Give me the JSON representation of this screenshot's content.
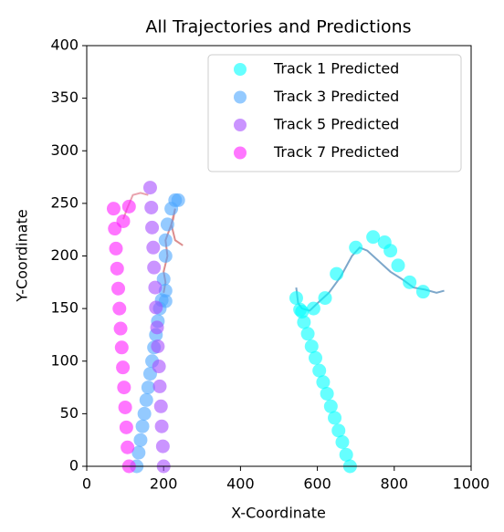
{
  "chart_data": {
    "type": "scatter",
    "title": "All Trajectories and Predictions",
    "x_label": "X-Coordinate",
    "y_label": "Y-Coordinate",
    "xlim": [
      0,
      1000
    ],
    "xticks": [
      0,
      200,
      400,
      600,
      800,
      1000
    ],
    "ylim": [
      0,
      400
    ],
    "yticks": [
      0,
      50,
      100,
      150,
      200,
      250,
      300,
      350,
      400
    ],
    "legend": "upper right",
    "series": [
      {
        "name": "Track 1 Predicted",
        "color": "#00ffff",
        "x": [
          545,
          555,
          565,
          575,
          585,
          595,
          605,
          615,
          625,
          635,
          645,
          655,
          665,
          675,
          685,
          560,
          590,
          620,
          650,
          700,
          745,
          775,
          790,
          810,
          840,
          875
        ],
        "values": [
          160,
          149,
          137,
          126,
          114,
          103,
          91,
          80,
          69,
          57,
          46,
          34,
          23,
          11,
          0,
          147,
          150,
          160,
          183,
          208,
          218,
          213,
          205,
          191,
          175,
          166
        ]
      },
      {
        "name": "Track 3 Predicted",
        "color": "#4da6ff",
        "x": [
          130,
          135,
          140,
          145,
          150,
          155,
          160,
          165,
          170,
          175,
          180,
          185,
          190,
          195,
          205,
          205,
          200,
          205,
          205,
          210,
          220,
          230,
          238
        ],
        "values": [
          0,
          13,
          25,
          38,
          50,
          63,
          75,
          88,
          100,
          113,
          125,
          138,
          150,
          158,
          157,
          167,
          178,
          200,
          215,
          230,
          245,
          253,
          253
        ]
      },
      {
        "name": "Track 5 Predicted",
        "color": "#a64dff",
        "x": [
          165,
          168,
          170,
          173,
          175,
          178,
          180,
          183,
          185,
          188,
          190,
          193,
          195,
          198,
          200
        ],
        "values": [
          265,
          246,
          227,
          208,
          189,
          170,
          151,
          132,
          114,
          95,
          76,
          57,
          38,
          19,
          0
        ]
      },
      {
        "name": "Track 7 Predicted",
        "color": "#ff1aff",
        "x": [
          70,
          73,
          76,
          79,
          82,
          85,
          88,
          91,
          94,
          97,
          100,
          103,
          106,
          110,
          95,
          110
        ],
        "values": [
          245,
          226,
          207,
          188,
          169,
          150,
          131,
          113,
          94,
          75,
          56,
          37,
          18,
          0,
          233,
          247
        ]
      }
    ],
    "trajectories": [
      {
        "color": "#4682b4",
        "x": [
          545,
          550,
          560,
          580,
          600,
          630,
          660,
          690,
          710,
          730,
          760,
          790,
          820,
          850,
          880,
          910,
          930
        ],
        "values": [
          170,
          155,
          150,
          148,
          155,
          165,
          180,
          200,
          208,
          205,
          195,
          185,
          178,
          170,
          168,
          165,
          167
        ]
      },
      {
        "color": "#cd5c5c",
        "x": [
          200,
          205,
          200,
          210,
          205,
          215,
          225,
          230,
          220,
          230,
          250
        ],
        "values": [
          165,
          175,
          185,
          200,
          215,
          225,
          235,
          245,
          230,
          215,
          210
        ]
      },
      {
        "color": "#e07a8a",
        "x": [
          95,
          105,
          120,
          140,
          160
        ],
        "values": [
          235,
          245,
          258,
          260,
          258
        ]
      }
    ]
  }
}
